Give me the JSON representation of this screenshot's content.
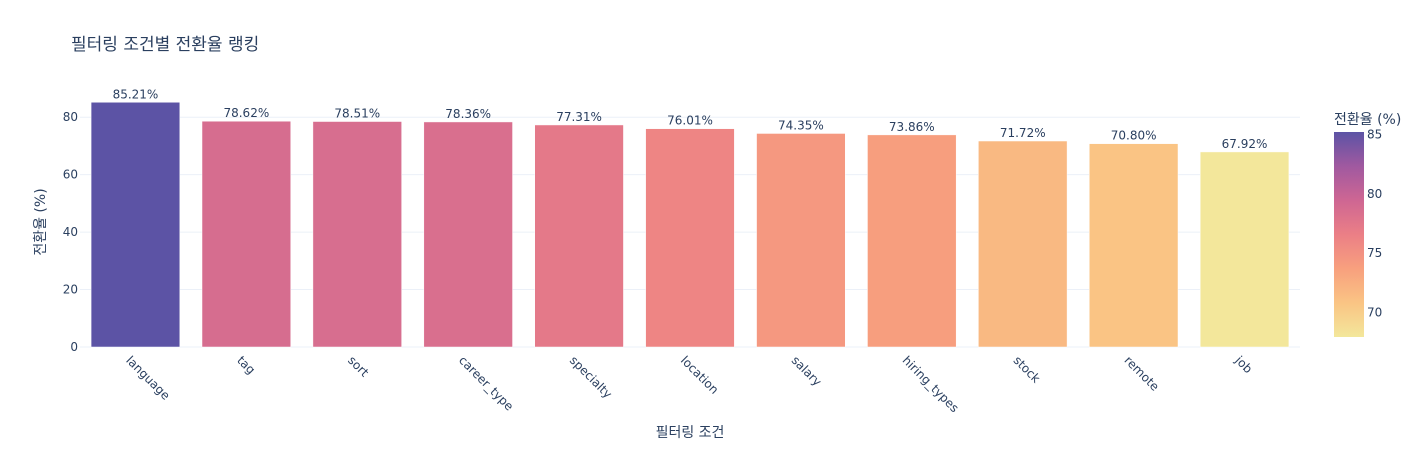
{
  "chart_data": {
    "type": "bar",
    "title": "필터링 조건별 전환율 랭킹",
    "xlabel": "필터링 조건",
    "ylabel": "전환율 (%)",
    "categories": [
      "language",
      "tag",
      "sort",
      "career_type",
      "specialty",
      "location",
      "salary",
      "hiring_types",
      "stock",
      "remote",
      "job"
    ],
    "values": [
      85.21,
      78.62,
      78.51,
      78.36,
      77.31,
      76.01,
      74.35,
      73.86,
      71.72,
      70.8,
      67.92
    ],
    "value_labels": [
      "85.21%",
      "78.62%",
      "78.51%",
      "78.36%",
      "77.31%",
      "76.01%",
      "74.35%",
      "73.86%",
      "71.72%",
      "70.80%",
      "67.92%"
    ],
    "ylim": [
      0,
      86
    ],
    "yticks": [
      0,
      20,
      40,
      60,
      80
    ],
    "grid": true,
    "colorbar": {
      "title": "전환율 (%)",
      "range": [
        67.92,
        85.21
      ],
      "ticks": [
        70,
        75,
        80,
        85
      ],
      "colorscale": [
        "#f3e79b",
        "#fac484",
        "#f8a07e",
        "#eb7f86",
        "#ce6693",
        "#a059a0",
        "#5c53a5"
      ],
      "placement": "right"
    }
  }
}
